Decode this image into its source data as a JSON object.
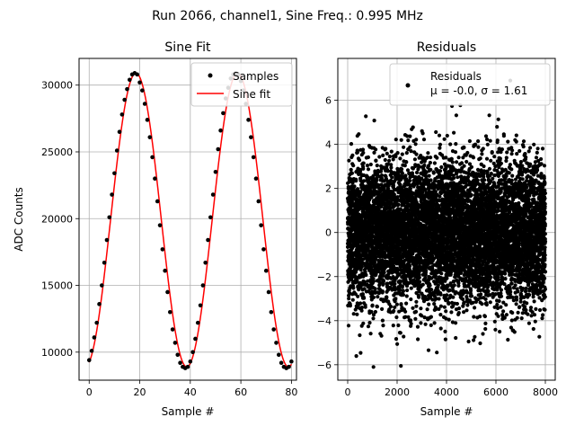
{
  "suptitle": "Run 2066, channel1, Sine Freq.: 0.995 MHz",
  "chart_data": [
    {
      "type": "line",
      "title": "Sine Fit",
      "xlabel": "Sample #",
      "ylabel": "ADC Counts",
      "xlim": [
        -4,
        82
      ],
      "ylim": [
        7900,
        32000
      ],
      "grid": true,
      "legend_position": "top-right",
      "xticks": [
        0,
        20,
        40,
        60,
        80
      ],
      "yticks": [
        10000,
        15000,
        20000,
        25000,
        30000
      ],
      "fit": {
        "offset": 19900,
        "amplitude": 11000,
        "period_samples": 40.2,
        "peak_sample": 18.5
      },
      "series": [
        {
          "name": "Samples",
          "style": "black dots",
          "color": "#000000",
          "x": [
            0,
            1,
            2,
            3,
            4,
            5,
            6,
            7,
            8,
            9,
            10,
            11,
            12,
            13,
            14,
            15,
            16,
            17,
            18,
            19,
            20,
            21,
            22,
            23,
            24,
            25,
            26,
            27,
            28,
            29,
            30,
            31,
            32,
            33,
            34,
            35,
            36,
            37,
            38,
            39,
            40,
            41,
            42,
            43,
            44,
            45,
            46,
            47,
            48,
            49,
            50,
            51,
            52,
            53,
            54,
            55,
            56,
            57,
            58,
            59,
            60,
            61,
            62,
            63,
            64,
            65,
            66,
            67,
            68,
            69,
            70,
            71,
            72,
            73,
            74,
            75,
            76,
            77,
            78,
            79,
            80
          ],
          "y": [
            9400,
            10100,
            11100,
            12200,
            13600,
            15000,
            16700,
            18400,
            20100,
            21800,
            23400,
            25100,
            26500,
            27800,
            28900,
            29700,
            30400,
            30800,
            30900,
            30800,
            30200,
            29600,
            28600,
            27400,
            26100,
            24600,
            23000,
            21300,
            19500,
            17700,
            16100,
            14500,
            13000,
            11700,
            10700,
            9800,
            9200,
            8900,
            8800,
            8900,
            9300,
            10000,
            11000,
            12200,
            13500,
            15000,
            16700,
            18400,
            20100,
            21800,
            23500,
            25200,
            26600,
            27900,
            29000,
            29800,
            30500,
            30800,
            30900,
            30800,
            30300,
            29600,
            28600,
            27400,
            26100,
            24600,
            23000,
            21300,
            19500,
            17700,
            16100,
            14500,
            13000,
            11700,
            10700,
            9800,
            9200,
            8900,
            8800,
            8900,
            9300
          ]
        },
        {
          "name": "Sine fit",
          "style": "red line",
          "color": "#ff0000"
        }
      ]
    },
    {
      "type": "scatter",
      "title": "Residuals",
      "xlabel": "Sample #",
      "xlim": [
        -400,
        8400
      ],
      "ylim": [
        -6.7,
        7.9
      ],
      "grid": true,
      "legend_position": "top-right",
      "xticks": [
        0,
        2000,
        4000,
        6000,
        8000
      ],
      "yticks": [
        -6,
        -4,
        -2,
        0,
        2,
        4,
        6
      ],
      "series": [
        {
          "name": "Residuals",
          "color": "#000000",
          "n_points": 8000,
          "x_range": [
            0,
            8000
          ],
          "mean": -0.0,
          "std": 1.61
        }
      ],
      "legend_stats": "μ = -0.0, σ = 1.61"
    }
  ]
}
